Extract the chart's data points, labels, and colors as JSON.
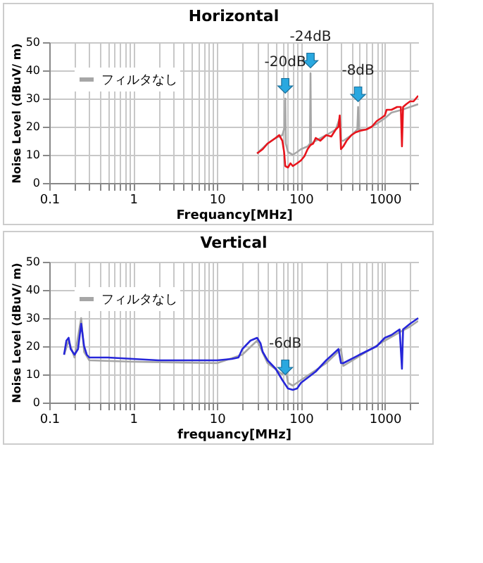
{
  "chart_data": [
    {
      "type": "line",
      "title": "Horizontal",
      "xlabel": "Frequancy[MHz]",
      "ylabel": "Noise Level (dBuV/ m)",
      "log": "x",
      "xlim": [
        0.1,
        2500
      ],
      "xticks": [
        0.1,
        1,
        10,
        100,
        1000
      ],
      "ylim": [
        0,
        50
      ],
      "yticks": [
        0,
        10,
        20,
        30,
        40,
        50
      ],
      "grid": true,
      "legend": "top left",
      "series": [
        {
          "name": "フィルタなし",
          "color": "#a6a6a6",
          "x": [
            30,
            40,
            50,
            60,
            64,
            65,
            66,
            70,
            80,
            90,
            100,
            120,
            128,
            130,
            132,
            150,
            200,
            260,
            290,
            300,
            320,
            400,
            470,
            480,
            490,
            600,
            800,
            1000,
            1200,
            1600,
            2000,
            2500
          ],
          "values": [
            10.5,
            14,
            16,
            17,
            20,
            30,
            14,
            11,
            10,
            11,
            12,
            13,
            14,
            39,
            14,
            15,
            17,
            19,
            23,
            15,
            15,
            17,
            19,
            27,
            19,
            19,
            21,
            23,
            25,
            26,
            27,
            28
          ]
        },
        {
          "color": "#e8141c",
          "x": [
            30,
            35,
            40,
            50,
            55,
            60,
            63,
            65,
            70,
            75,
            80,
            90,
            100,
            110,
            120,
            130,
            140,
            150,
            170,
            200,
            230,
            260,
            280,
            290,
            300,
            320,
            350,
            400,
            450,
            500,
            600,
            700,
            800,
            900,
            1000,
            1050,
            1200,
            1400,
            1550,
            1600,
            1650,
            1800,
            2000,
            2200,
            2500
          ],
          "values": [
            10.5,
            12,
            14,
            16,
            17,
            15,
            11,
            6,
            5.5,
            7,
            6,
            7,
            8,
            9.5,
            12,
            13.5,
            14,
            16,
            15,
            17,
            16.5,
            19,
            20,
            24,
            12,
            13,
            15,
            17,
            18,
            18.5,
            19,
            20,
            22,
            23,
            24,
            26,
            26,
            27,
            27,
            13,
            27,
            28,
            29,
            29,
            31
          ]
        }
      ],
      "annotations": [
        {
          "text": "-20dB",
          "x": 65,
          "y": 30
        },
        {
          "text": "-24dB",
          "x": 130,
          "y": 39
        },
        {
          "text": "-8dB",
          "x": 480,
          "y": 27
        }
      ]
    },
    {
      "type": "line",
      "title": "Vertical",
      "xlabel": "frequancy[MHz]",
      "ylabel": "Noise Level (dBuV/ m)",
      "log": "x",
      "xlim": [
        0.1,
        2500
      ],
      "xticks": [
        0.1,
        1,
        10,
        100,
        1000
      ],
      "ylim": [
        0,
        50
      ],
      "yticks": [
        0,
        10,
        20,
        30,
        40,
        50
      ],
      "grid": true,
      "legend": "top left",
      "series": [
        {
          "name": "フィルタなし",
          "color": "#a6a6a6",
          "x": [
            0.15,
            0.17,
            0.2,
            0.24,
            0.26,
            0.3,
            1,
            10,
            20,
            30,
            40,
            60,
            65,
            70,
            80,
            100,
            200,
            300,
            320,
            1000,
            1500,
            2000,
            2500
          ],
          "values": [
            17,
            22,
            16,
            30,
            18,
            15,
            14.5,
            14,
            17,
            22,
            14,
            10,
            13,
            7,
            6,
            8,
            14,
            19,
            13,
            22,
            25,
            27,
            29
          ]
        },
        {
          "color": "#2626d9",
          "x": [
            0.15,
            0.16,
            0.17,
            0.18,
            0.2,
            0.22,
            0.24,
            0.26,
            0.28,
            0.3,
            0.5,
            1,
            2,
            5,
            10,
            15,
            18,
            20,
            25,
            30,
            33,
            35,
            40,
            50,
            60,
            70,
            80,
            90,
            100,
            150,
            200,
            280,
            300,
            320,
            500,
            800,
            1000,
            1200,
            1500,
            1600,
            1650,
            2000,
            2500
          ],
          "values": [
            17,
            22,
            23,
            19,
            17,
            19,
            28,
            20,
            17,
            16,
            16,
            15.5,
            15,
            15,
            15,
            15.5,
            16,
            19,
            22,
            23,
            21,
            18,
            15,
            12,
            8,
            5,
            4.5,
            5,
            7,
            11,
            15,
            19,
            14,
            14,
            17,
            20,
            23,
            24,
            26,
            12,
            26,
            28,
            30
          ]
        }
      ],
      "annotations": [
        {
          "text": "-6dB",
          "x": 65,
          "y": 8
        }
      ]
    }
  ]
}
